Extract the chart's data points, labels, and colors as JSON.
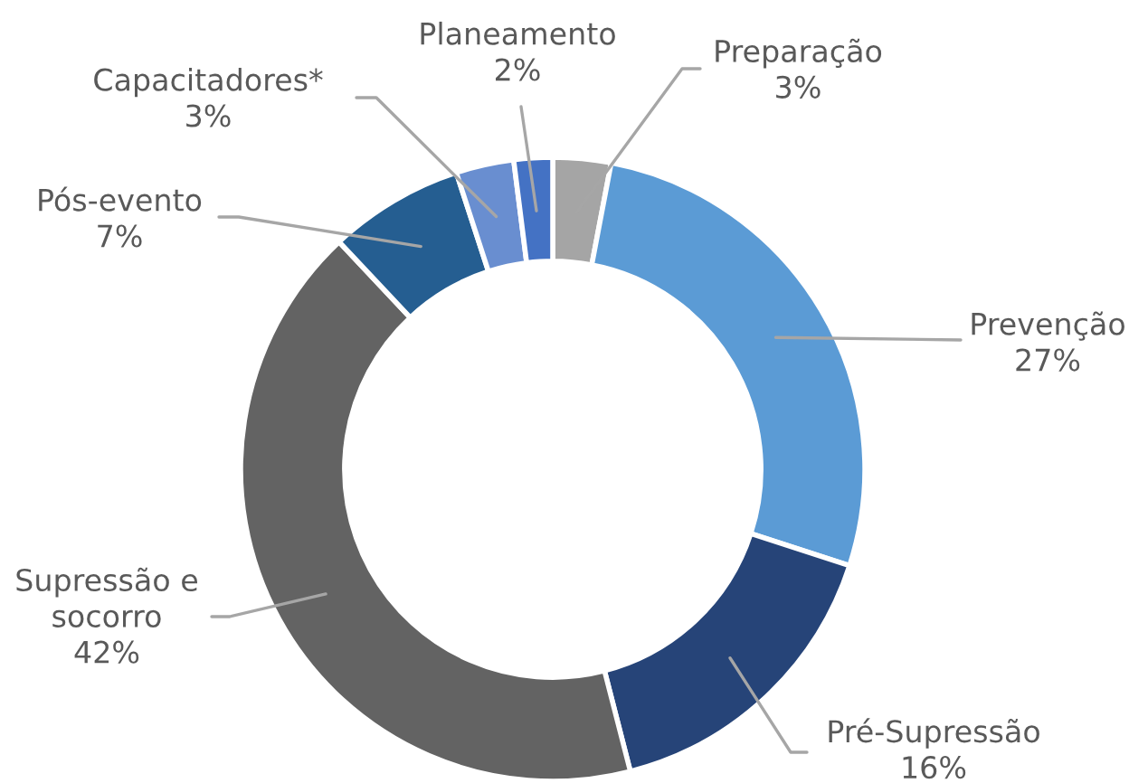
{
  "chart_data": {
    "type": "donut",
    "categories": [
      "Preparação",
      "Prevenção",
      "Pré-Supressão",
      "Supressão e\nsocorro",
      "Pós-evento",
      "Capacitadores*",
      "Planeamento"
    ],
    "values": [
      3,
      27,
      16,
      42,
      7,
      3,
      2
    ],
    "value_labels": [
      "3%",
      "27%",
      "16%",
      "42%",
      "7%",
      "3%",
      "2%"
    ],
    "colors": [
      "#a5a5a5",
      "#5b9bd5",
      "#264478",
      "#636363",
      "#255e91",
      "#698ed0",
      "#4472c4"
    ]
  }
}
